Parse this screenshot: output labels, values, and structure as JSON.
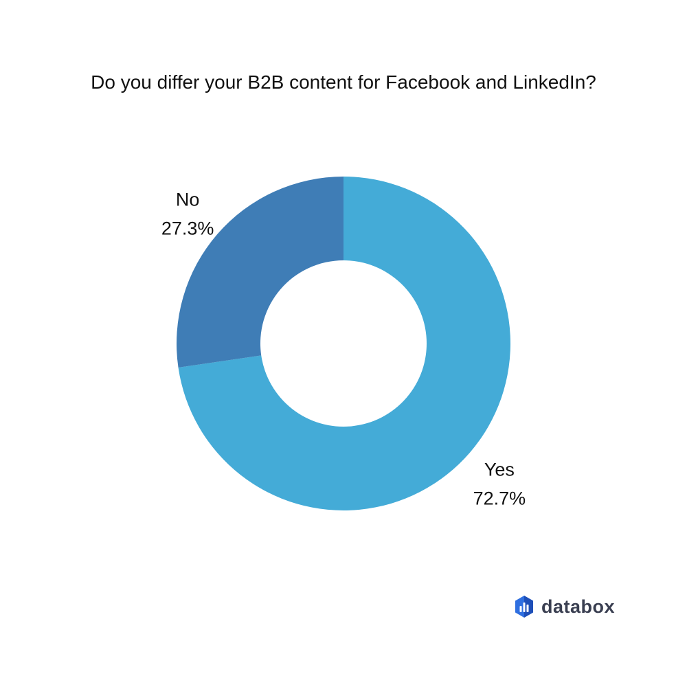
{
  "brand": {
    "name": "databox",
    "icon": "databox-logo-icon",
    "color": "#3a3f51"
  },
  "chart_data": {
    "type": "pie",
    "variant": "donut",
    "title": "Do you differ your B2B content for Facebook and LinkedIn?",
    "slices": [
      {
        "label": "Yes",
        "value": 72.7,
        "value_label": "72.7%",
        "color": "#44abd7"
      },
      {
        "label": "No",
        "value": 27.3,
        "value_label": "27.3%",
        "color": "#3f7db6"
      }
    ],
    "start_angle_deg": 0,
    "direction": "clockwise",
    "legend": "none",
    "label_placement": "outside"
  }
}
